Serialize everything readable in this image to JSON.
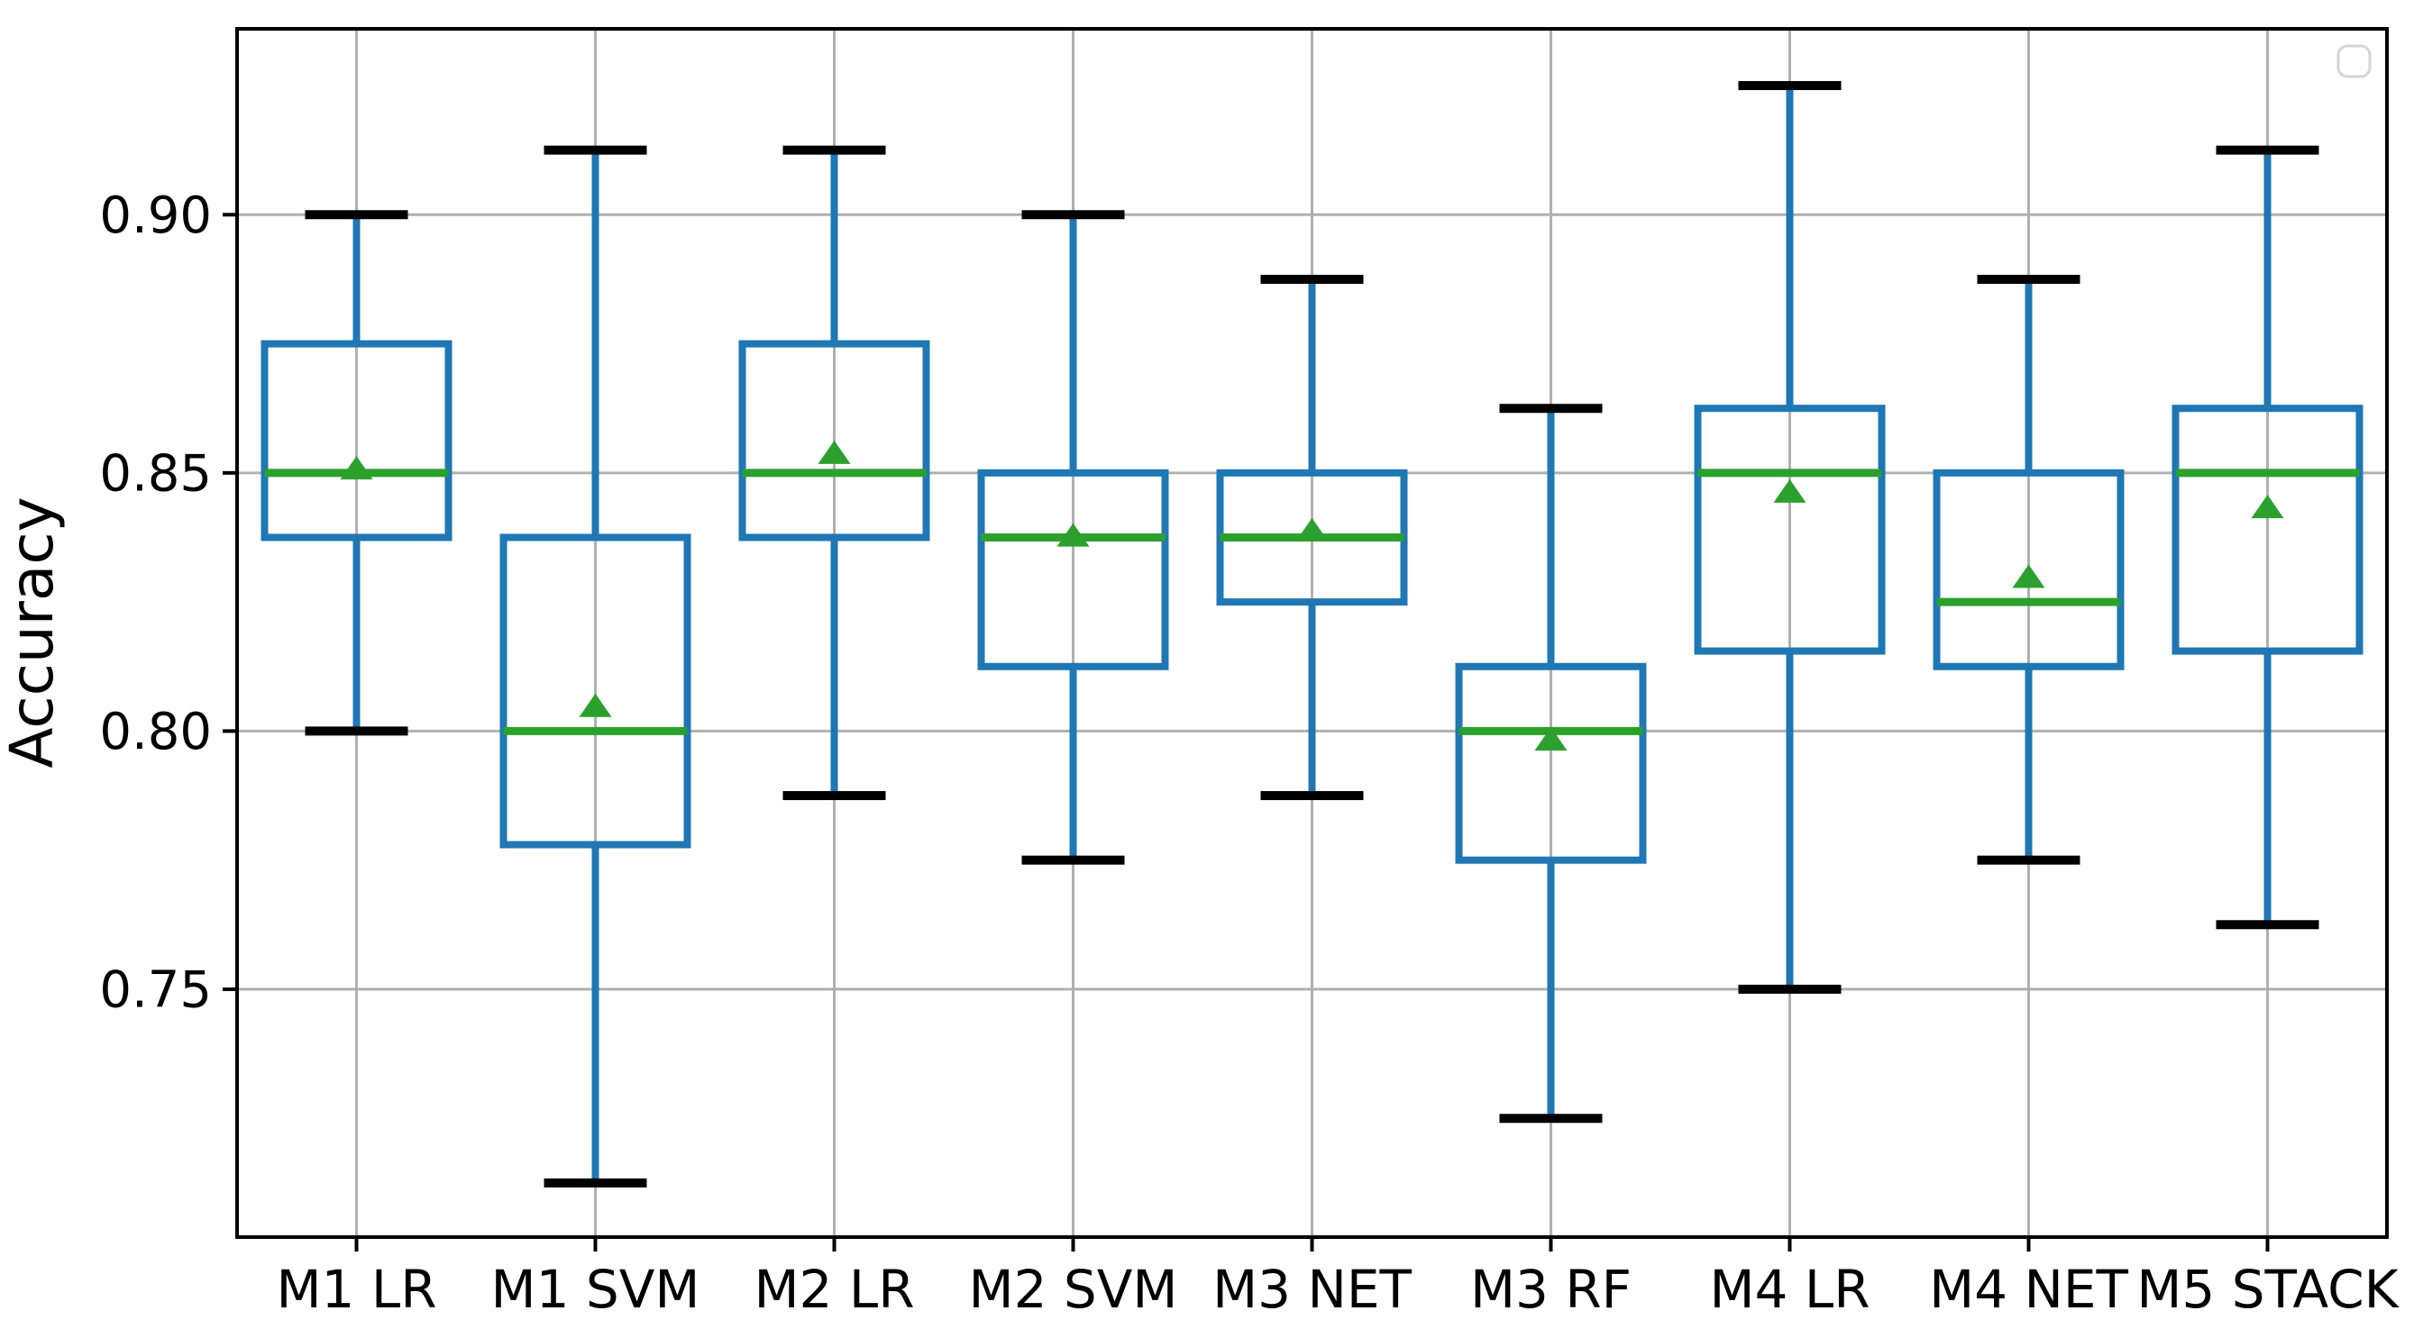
{
  "chart_data": {
    "type": "box",
    "title": "",
    "xlabel": "",
    "ylabel": "Accuracy",
    "categories": [
      "M1 LR",
      "M1 SVM",
      "M2 LR",
      "M2 SVM",
      "M3 NET",
      "M3 RF",
      "M4 LR",
      "M4 NET",
      "M5 STACK"
    ],
    "yticks": {
      "values": [
        0.75,
        0.8,
        0.85,
        0.9
      ],
      "labels": [
        "0.75",
        "0.80",
        "0.85",
        "0.90"
      ]
    },
    "ylim": [
      0.702,
      0.936
    ],
    "grid": true,
    "legend": {
      "visible": true,
      "entries": [],
      "position": "upper-right"
    },
    "series": [
      {
        "name": "M1 LR",
        "whislo": 0.8,
        "q1": 0.8375,
        "med": 0.85,
        "q3": 0.875,
        "whishi": 0.9,
        "mean": 0.851
      },
      {
        "name": "M1 SVM",
        "whislo": 0.7125,
        "q1": 0.778,
        "med": 0.8,
        "q3": 0.8375,
        "whishi": 0.9125,
        "mean": 0.805
      },
      {
        "name": "M2 LR",
        "whislo": 0.7875,
        "q1": 0.8375,
        "med": 0.85,
        "q3": 0.875,
        "whishi": 0.9125,
        "mean": 0.854
      },
      {
        "name": "M2 SVM",
        "whislo": 0.775,
        "q1": 0.8125,
        "med": 0.8375,
        "q3": 0.85,
        "whishi": 0.9,
        "mean": 0.838
      },
      {
        "name": "M3 NET",
        "whislo": 0.7875,
        "q1": 0.825,
        "med": 0.8375,
        "q3": 0.85,
        "whishi": 0.8875,
        "mean": 0.839
      },
      {
        "name": "M3 RF",
        "whislo": 0.725,
        "q1": 0.775,
        "med": 0.8,
        "q3": 0.8125,
        "whishi": 0.8625,
        "mean": 0.7985
      },
      {
        "name": "M4 LR",
        "whislo": 0.75,
        "q1": 0.8155,
        "med": 0.85,
        "q3": 0.8625,
        "whishi": 0.925,
        "mean": 0.8465
      },
      {
        "name": "M4 NET",
        "whislo": 0.775,
        "q1": 0.8125,
        "med": 0.825,
        "q3": 0.85,
        "whishi": 0.8875,
        "mean": 0.83
      },
      {
        "name": "M5 STACK",
        "whislo": 0.7625,
        "q1": 0.8155,
        "med": 0.85,
        "q3": 0.8625,
        "whishi": 0.9125,
        "mean": 0.8435
      }
    ],
    "colors": {
      "box": "#1f77b4",
      "whisker": "#1f77b4",
      "median": "#2ca02c",
      "mean_marker": "#2ca02c",
      "caps": "#000000",
      "grid": "#b0b0b0",
      "spine": "#000000",
      "text": "#000000",
      "legend_frame": "#d5d5d5",
      "background": "#ffffff"
    }
  }
}
